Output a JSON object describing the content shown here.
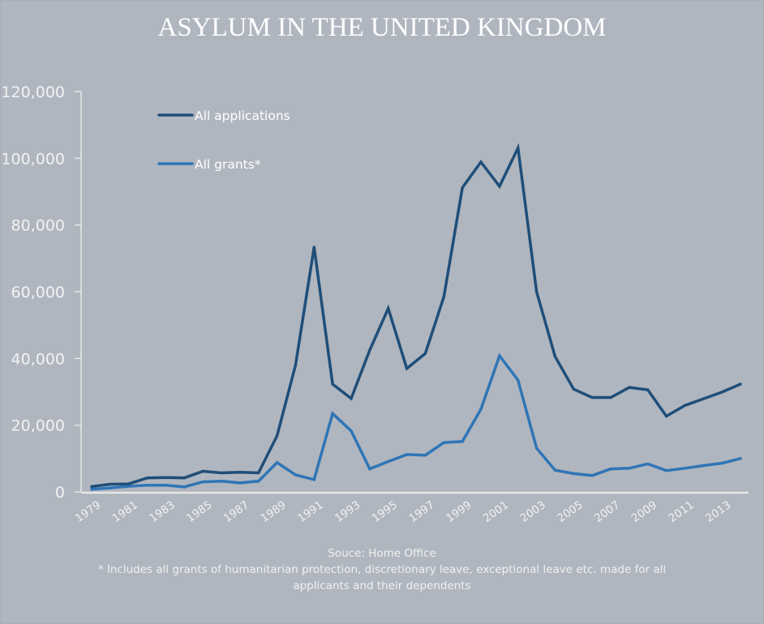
{
  "chart_data": {
    "type": "line",
    "title": "ASYLUM IN THE UNITED KINGDOM",
    "xlabel": "",
    "ylabel": "",
    "x": [
      1979,
      1980,
      1981,
      1982,
      1983,
      1984,
      1985,
      1986,
      1987,
      1988,
      1989,
      1990,
      1991,
      1992,
      1993,
      1994,
      1995,
      1996,
      1997,
      1998,
      1999,
      2000,
      2001,
      2002,
      2003,
      2004,
      2005,
      2006,
      2007,
      2008,
      2009,
      2010,
      2011,
      2012,
      2013,
      2014
    ],
    "xtick_labels": [
      "1979",
      "1981",
      "1983",
      "1985",
      "1987",
      "1989",
      "1991",
      "1993",
      "1995",
      "1997",
      "1999",
      "2001",
      "2003",
      "2005",
      "2007",
      "2009",
      "2011",
      "2013"
    ],
    "ylim": [
      0,
      120000
    ],
    "yticks": [
      0,
      20000,
      40000,
      60000,
      80000,
      100000,
      120000
    ],
    "ytick_labels": [
      "0",
      "20,000",
      "40,000",
      "60,000",
      "80,000",
      "100,000",
      "120,000"
    ],
    "grid": false,
    "legend_position": "top-left",
    "series": [
      {
        "name": "All applications",
        "color": "#1f4e79",
        "values": [
          1600,
          2300,
          2400,
          4200,
          4300,
          4200,
          6200,
          5700,
          5900,
          5700,
          16800,
          38000,
          73400,
          32300,
          28000,
          42500,
          55000,
          37000,
          41500,
          58500,
          91200,
          98900,
          91600,
          103100,
          60000,
          40600,
          30800,
          28300,
          28300,
          31300,
          30600,
          22700,
          25900,
          27900,
          29900,
          32300
        ]
      },
      {
        "name": "All grants*",
        "color": "#2e75b6",
        "values": [
          800,
          1200,
          1700,
          2000,
          2000,
          1500,
          3000,
          3200,
          2700,
          3200,
          8800,
          5100,
          3700,
          23500,
          18300,
          6900,
          9100,
          11200,
          11000,
          14800,
          15100,
          24800,
          40800,
          33500,
          13100,
          6500,
          5500,
          4900,
          6900,
          7100,
          8400,
          6400,
          7100,
          7900,
          8600,
          10000
        ]
      }
    ]
  },
  "footer": {
    "source": "Souce: Home Office",
    "note": "* Includes all grants of humanitarian protection, discretionary leave, exceptional leave etc. made for all applicants and their dependents"
  },
  "colors": {
    "background": "#b0b6bf",
    "axis": "#e6e6e6",
    "text": "#ffffff"
  }
}
